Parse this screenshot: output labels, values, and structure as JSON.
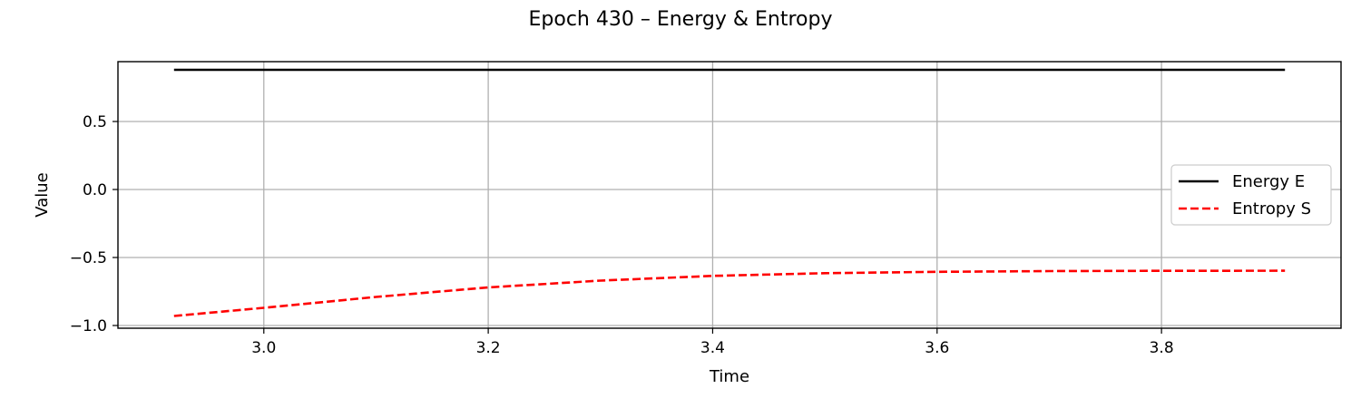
{
  "chart_data": {
    "type": "line",
    "title": "Epoch 430 – Energy & Entropy",
    "xlabel": "Time",
    "ylabel": "Value",
    "xlim": [
      2.87,
      3.96
    ],
    "ylim": [
      -1.02,
      0.94
    ],
    "xticks": [
      3.0,
      3.2,
      3.4,
      3.6,
      3.8
    ],
    "xtick_labels": [
      "3.0",
      "3.2",
      "3.4",
      "3.6",
      "3.8"
    ],
    "yticks": [
      -1.0,
      -0.5,
      0.0,
      0.5
    ],
    "ytick_labels": [
      "−1.0",
      "−0.5",
      "0.0",
      "0.5"
    ],
    "grid": true,
    "legend_position": "center-right",
    "series": [
      {
        "name": "Energy E",
        "color": "#000000",
        "style": "solid",
        "x": [
          2.92,
          3.91
        ],
        "y": [
          0.88,
          0.88
        ]
      },
      {
        "name": "Entropy S",
        "color": "#ff0000",
        "style": "dashed",
        "x": [
          2.92,
          3.0,
          3.1,
          3.2,
          3.3,
          3.4,
          3.5,
          3.6,
          3.7,
          3.8,
          3.91
        ],
        "y": [
          -0.93,
          -0.87,
          -0.79,
          -0.72,
          -0.67,
          -0.635,
          -0.615,
          -0.605,
          -0.6,
          -0.598,
          -0.597
        ]
      }
    ]
  }
}
